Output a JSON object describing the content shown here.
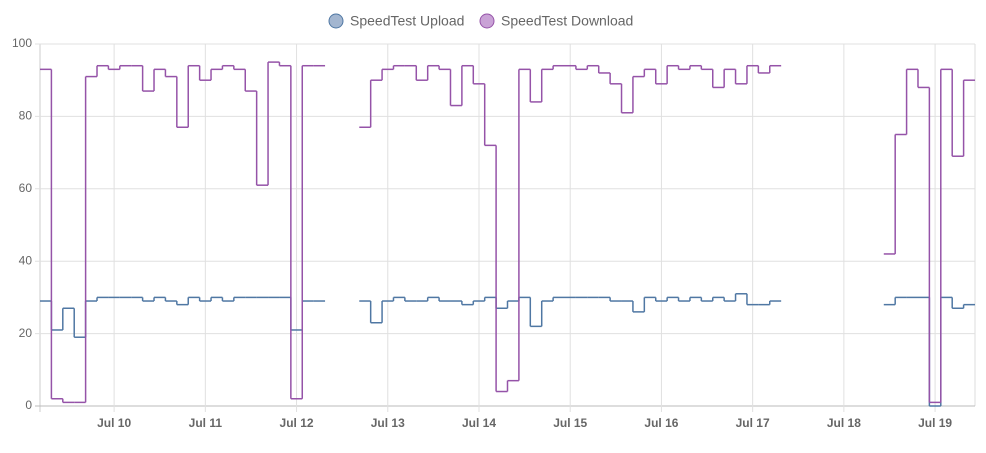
{
  "chart_data": {
    "type": "step-line",
    "categories": [
      null,
      null,
      null,
      null,
      null,
      null,
      "Jul 10",
      null,
      null,
      null,
      null,
      null,
      null,
      null,
      "Jul 11",
      null,
      null,
      null,
      null,
      null,
      null,
      null,
      "Jul 12",
      null,
      null,
      null,
      null,
      null,
      null,
      null,
      "Jul 13",
      null,
      null,
      null,
      null,
      null,
      null,
      null,
      "Jul 14",
      null,
      null,
      null,
      null,
      null,
      null,
      null,
      "Jul 15",
      null,
      null,
      null,
      null,
      null,
      null,
      null,
      "Jul 16",
      null,
      null,
      null,
      null,
      null,
      null,
      null,
      "Jul 17",
      null,
      null,
      null,
      null,
      null,
      null,
      null,
      "Jul 18",
      null,
      null,
      null,
      null,
      null,
      null,
      null,
      "Jul 19",
      null,
      null,
      null
    ],
    "series": [
      {
        "name": "SpeedTest Upload",
        "color": "#4f77a3",
        "legend_color": "#a3b6d0",
        "values": [
          29,
          21,
          27,
          19,
          29,
          30,
          30,
          30,
          30,
          29,
          30,
          29,
          28,
          30,
          29,
          30,
          29,
          30,
          30,
          30,
          30,
          30,
          21,
          29,
          29,
          null,
          null,
          null,
          29,
          23,
          29,
          30,
          29,
          29,
          30,
          29,
          29,
          28,
          29,
          30,
          27,
          29,
          30,
          22,
          29,
          30,
          30,
          30,
          30,
          30,
          29,
          29,
          26,
          30,
          29,
          30,
          29,
          30,
          29,
          30,
          29,
          31,
          28,
          28,
          29,
          null,
          null,
          null,
          null,
          null,
          null,
          null,
          null,
          null,
          28,
          30,
          30,
          30,
          0,
          30,
          27,
          28
        ]
      },
      {
        "name": "SpeedTest Download",
        "color": "#9553a8",
        "legend_color": "#c9a2d6",
        "values": [
          93,
          2,
          1,
          1,
          91,
          94,
          93,
          94,
          94,
          87,
          93,
          91,
          77,
          94,
          90,
          93,
          94,
          93,
          87,
          61,
          95,
          94,
          2,
          94,
          94,
          null,
          null,
          null,
          77,
          90,
          93,
          94,
          94,
          90,
          94,
          93,
          83,
          94,
          89,
          72,
          4,
          7,
          93,
          84,
          93,
          94,
          94,
          93,
          94,
          92,
          89,
          81,
          91,
          93,
          89,
          94,
          93,
          94,
          93,
          88,
          93,
          89,
          94,
          92,
          94,
          null,
          null,
          null,
          null,
          null,
          null,
          null,
          null,
          null,
          42,
          75,
          93,
          88,
          1,
          93,
          69,
          90
        ]
      }
    ],
    "ylim": [
      0,
      100
    ],
    "yticks": [
      0,
      20,
      40,
      60,
      80,
      100
    ],
    "grid": true
  }
}
